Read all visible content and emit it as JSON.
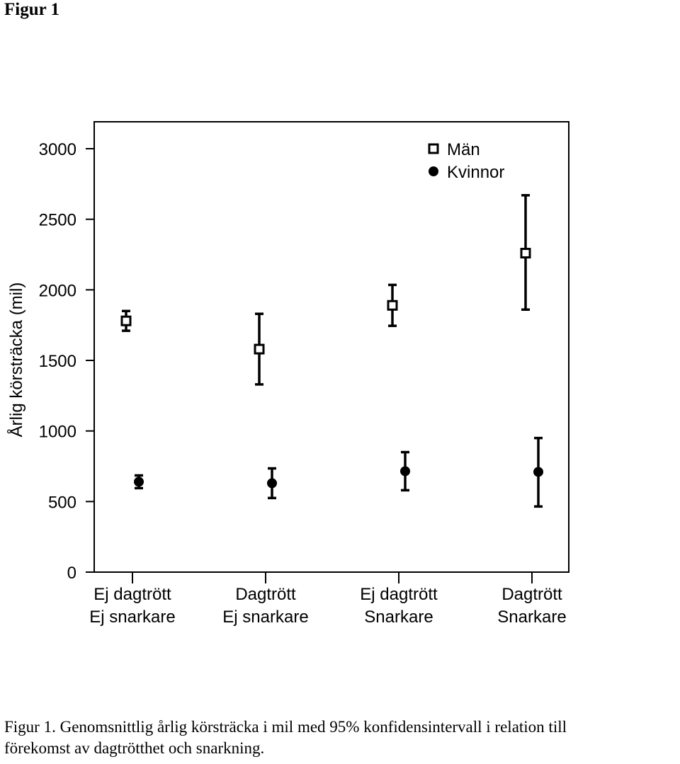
{
  "heading": "Figur 1",
  "caption": {
    "line1": "Figur 1. Genomsnittlig årlig körsträcka i mil med 95% konfidensintervall i relation till",
    "line2": "förekomst av dagtrötthet och snarkning."
  },
  "chart_data": {
    "type": "scatter",
    "title": "",
    "xlabel": "",
    "ylabel": "Årlig körsträcka (mil)",
    "ylim": [
      0,
      3000
    ],
    "yticks": [
      "0",
      "500",
      "1000",
      "1500",
      "2000",
      "2500",
      "3000"
    ],
    "categories": [
      [
        "Ej dagtrött",
        "Ej snarkare"
      ],
      [
        "Dagtrött",
        "Ej snarkare"
      ],
      [
        "Ej dagtrött",
        "Snarkare"
      ],
      [
        "Dagtrött",
        "Snarkare"
      ]
    ],
    "grid": false,
    "legend_position": "top-right",
    "series": [
      {
        "name": "Män",
        "marker": "open-square",
        "color": "#000000",
        "values": [
          1780,
          1580,
          1890,
          2260
        ],
        "ci_low": [
          1710,
          1330,
          1745,
          1860
        ],
        "ci_high": [
          1850,
          1830,
          2035,
          2670
        ]
      },
      {
        "name": "Kvinnor",
        "marker": "filled-circle",
        "color": "#000000",
        "values": [
          640,
          630,
          715,
          710
        ],
        "ci_low": [
          595,
          525,
          580,
          465
        ],
        "ci_high": [
          685,
          735,
          850,
          950
        ]
      }
    ]
  }
}
